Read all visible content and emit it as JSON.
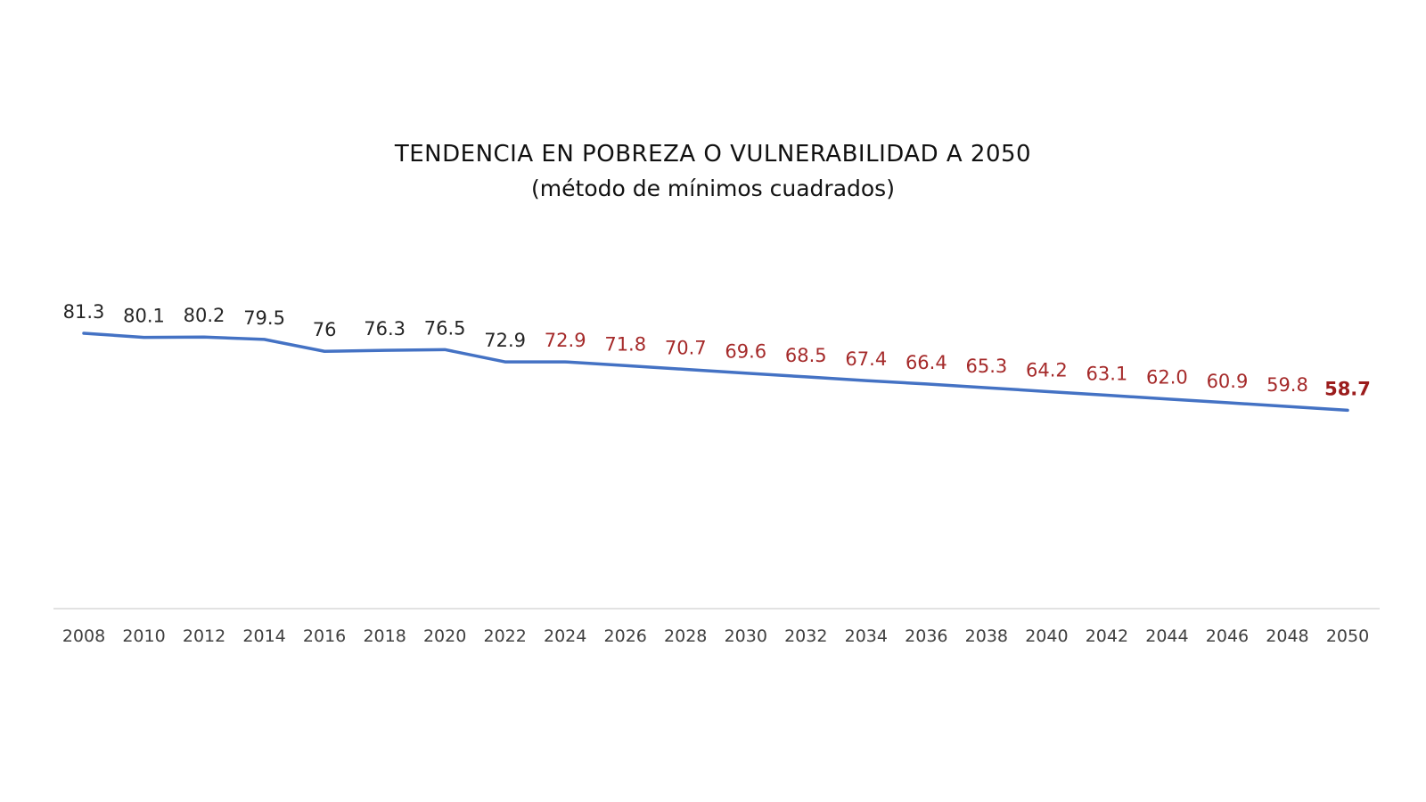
{
  "chart_data": {
    "type": "line",
    "title": "TENDENCIA EN POBREZA O VULNERABILIDAD A 2050",
    "subtitle": "(método de mínimos cuadrados)",
    "xlabel": "",
    "ylabel": "",
    "ylim": [
      0,
      100
    ],
    "grid": false,
    "legend": "none",
    "categories": [
      "2008",
      "2010",
      "2012",
      "2014",
      "2016",
      "2018",
      "2020",
      "2022",
      "2024",
      "2026",
      "2028",
      "2030",
      "2032",
      "2034",
      "2036",
      "2038",
      "2040",
      "2042",
      "2044",
      "2046",
      "2048",
      "2050"
    ],
    "series": [
      {
        "name": "Pobreza o vulnerabilidad",
        "color": "#4472c4",
        "values": [
          81.3,
          80.1,
          80.2,
          79.5,
          76,
          76.3,
          76.5,
          72.9,
          72.9,
          71.8,
          70.7,
          69.6,
          68.5,
          67.4,
          66.4,
          65.3,
          64.2,
          63.1,
          62.0,
          60.9,
          59.8,
          58.7
        ],
        "data_labels": [
          "81.3",
          "80.1",
          "80.2",
          "79.5",
          "76",
          "76.3",
          "76.5",
          "72.9",
          "72.9",
          "71.8",
          "70.7",
          "69.6",
          "68.5",
          "67.4",
          "66.4",
          "65.3",
          "64.2",
          "63.1",
          "62.0",
          "60.9",
          "59.8",
          "58.7"
        ],
        "label_kind": [
          "observed",
          "observed",
          "observed",
          "observed",
          "observed",
          "observed",
          "observed",
          "observed",
          "projected",
          "projected",
          "projected",
          "projected",
          "projected",
          "projected",
          "projected",
          "projected",
          "projected",
          "projected",
          "projected",
          "projected",
          "projected",
          "final"
        ]
      }
    ],
    "colors": {
      "observed_label": "#262626",
      "projected_label": "#a52a2a",
      "final_label": "#9b1c1c",
      "axis": "#d9d9d9",
      "tick": "#404040"
    }
  }
}
